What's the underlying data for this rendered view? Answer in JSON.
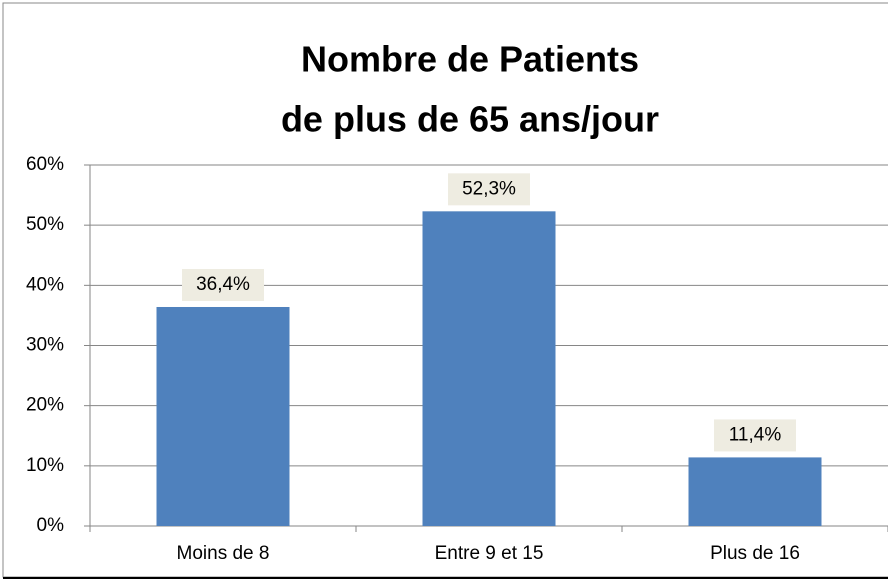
{
  "chart_data": {
    "type": "bar",
    "title": [
      "Nombre de Patients",
      "de plus de 65 ans/jour"
    ],
    "categories": [
      "Moins de 8",
      "Entre 9 et 15",
      "Plus de 16"
    ],
    "values": [
      36.4,
      52.3,
      11.4
    ],
    "value_labels": [
      "36,4%",
      "52,3%",
      "11,4%"
    ],
    "color": "#4f81bd",
    "ylim": [
      0,
      60
    ],
    "yticks": [
      {
        "value": 0,
        "label": "0%"
      },
      {
        "value": 10,
        "label": "10%"
      },
      {
        "value": 20,
        "label": "20%"
      },
      {
        "value": 30,
        "label": "30%"
      },
      {
        "value": 40,
        "label": "40%"
      },
      {
        "value": 50,
        "label": "50%"
      },
      {
        "value": 60,
        "label": "60%"
      }
    ],
    "grid": true
  }
}
